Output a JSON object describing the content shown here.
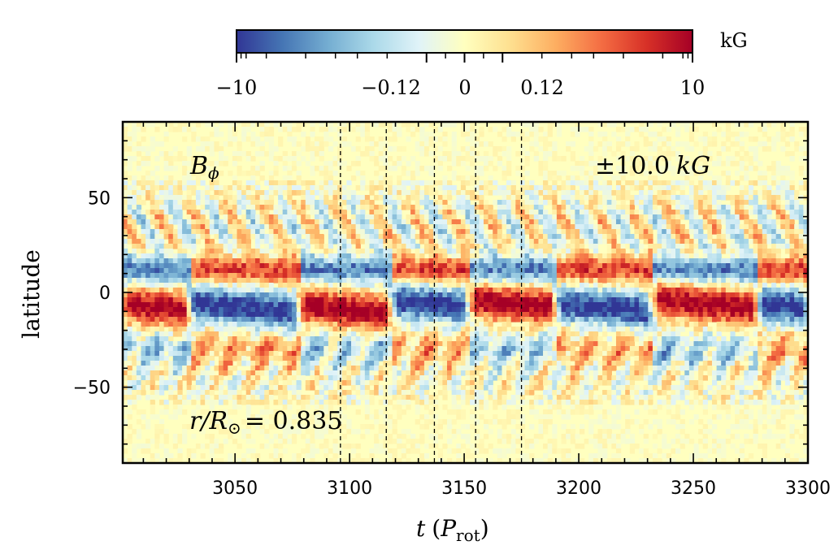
{
  "chart_data": {
    "type": "heatmap",
    "title": "",
    "xlabel_symbol": "t",
    "xlabel_unit_base": "P",
    "xlabel_unit_sub": "rot",
    "ylabel": "latitude",
    "xlim": [
      3001,
      3300
    ],
    "ylim": [
      -90,
      90
    ],
    "x_ticks": [
      3050,
      3100,
      3150,
      3200,
      3250,
      3300
    ],
    "x_tick_labels": [
      "3050",
      "3100",
      "3150",
      "3200",
      "3250",
      "3300"
    ],
    "y_ticks": [
      50,
      0,
      -50
    ],
    "y_tick_labels": [
      "50",
      "0",
      "−50"
    ],
    "vertical_dashed_lines": [
      3096,
      3116,
      3137,
      3155,
      3175
    ],
    "annotations": {
      "quantity": "⟨Bϕ⟩",
      "quantity_base": "B",
      "quantity_sub": "ϕ",
      "range": "±10.0 kG",
      "range_prefix": "±10.0",
      "range_unit": "kG",
      "radius": "r/R⊙ = 0.835",
      "radius_lhs": "r/R",
      "radius_sub": "⊙",
      "radius_value": "= 0.835"
    },
    "colorbar": {
      "label": "kG",
      "scale": "symlog",
      "range": [
        -10,
        10
      ],
      "tick_values": [
        -10,
        -0.12,
        0,
        0.12,
        10
      ],
      "tick_labels": [
        "−10",
        "−0.12",
        "0",
        "0.12",
        "10"
      ],
      "colormap": [
        "#313695",
        "#4575b4",
        "#74add1",
        "#abd9e9",
        "#e0f3f8",
        "#ffffbf",
        "#fee090",
        "#fdae61",
        "#f46d43",
        "#d73027",
        "#a50026"
      ]
    },
    "field_structure": {
      "toroidal_band_equator": [
        {
          "t_start": 3001,
          "t_end": 3030,
          "lat_center": -8,
          "sign": 1
        },
        {
          "t_start": 3030,
          "t_end": 3078,
          "lat_center": -8,
          "sign": -1
        },
        {
          "t_start": 3078,
          "t_end": 3118,
          "lat_center": -9,
          "sign": 1
        },
        {
          "t_start": 3118,
          "t_end": 3152,
          "lat_center": -6,
          "sign": -1
        },
        {
          "t_start": 3152,
          "t_end": 3190,
          "lat_center": -6,
          "sign": 1
        },
        {
          "t_start": 3190,
          "t_end": 3232,
          "lat_center": -8,
          "sign": -1
        },
        {
          "t_start": 3232,
          "t_end": 3278,
          "lat_center": -6,
          "sign": 1
        },
        {
          "t_start": 3278,
          "t_end": 3300,
          "lat_center": -7,
          "sign": -1
        }
      ],
      "upper_band_lat": 12,
      "lower_band_lat": -30,
      "midlatitude_wreaths": {
        "lat_range": [
          15,
          55
        ],
        "period": 16
      }
    }
  }
}
